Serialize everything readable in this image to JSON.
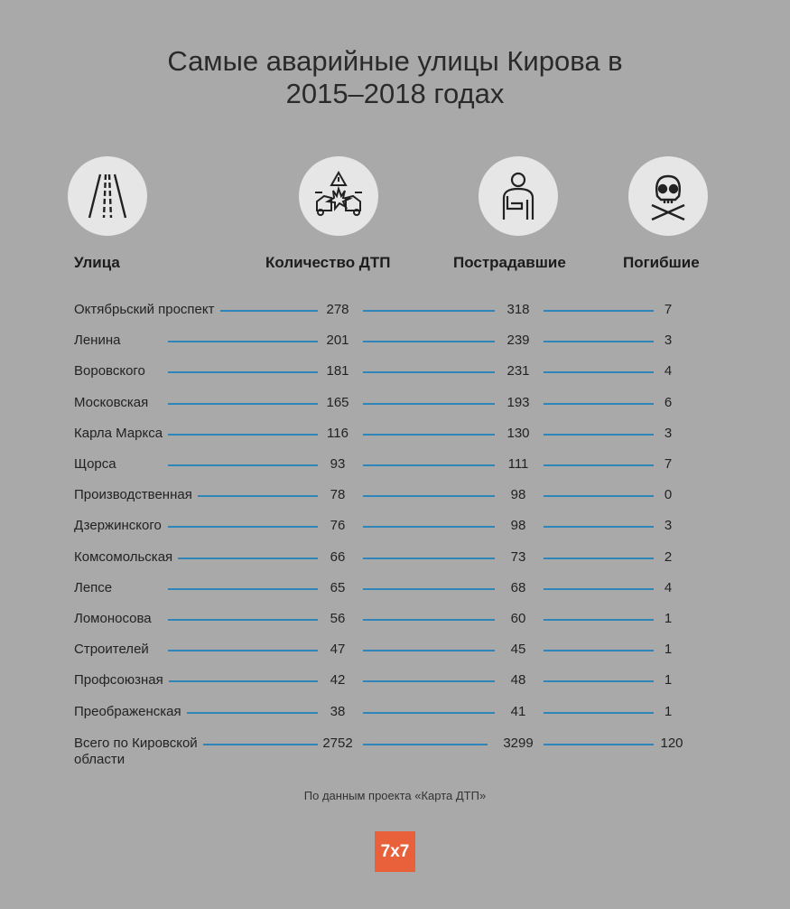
{
  "title": {
    "line1": "Самые аварийные улицы Кирова в",
    "line2": "2015–2018 годах"
  },
  "icons": [
    "road-icon",
    "car-crash-icon",
    "injured-person-icon",
    "skull-icon"
  ],
  "headers": {
    "street": "Улица",
    "accidents": "Количество ДТП",
    "injured": "Пострадавшие",
    "killed": "Погибшие"
  },
  "colors": {
    "background": "#a9a9a9",
    "line": "#2e86b8",
    "logo": "#e8613a"
  },
  "chart_data": {
    "type": "table",
    "columns": [
      "Улица",
      "Количество ДТП",
      "Пострадавшие",
      "Погибшие"
    ],
    "rows": [
      {
        "street": "Октябрьский проспект",
        "accidents": "278",
        "injured": "318",
        "killed": "7"
      },
      {
        "street": "Ленина",
        "accidents": "201",
        "injured": "239",
        "killed": "3"
      },
      {
        "street": "Воровского",
        "accidents": "181",
        "injured": "231",
        "killed": "4"
      },
      {
        "street": "Московская",
        "accidents": "165",
        "injured": "193",
        "killed": "6"
      },
      {
        "street": "Карла Маркса",
        "accidents": "116",
        "injured": "130",
        "killed": "3"
      },
      {
        "street": "Щорса",
        "accidents": "93",
        "injured": "111",
        "killed": "7"
      },
      {
        "street": "Производственная",
        "accidents": "78",
        "injured": "98",
        "killed": "0"
      },
      {
        "street": "Дзержинского",
        "accidents": "76",
        "injured": "98",
        "killed": "3"
      },
      {
        "street": "Комсомольская",
        "accidents": "66",
        "injured": "73",
        "killed": "2"
      },
      {
        "street": "Лепсе",
        "accidents": "65",
        "injured": "68",
        "killed": "4"
      },
      {
        "street": "Ломоносова",
        "accidents": "56",
        "injured": "60",
        "killed": "1"
      },
      {
        "street": "Строителей",
        "accidents": "47",
        "injured": "45",
        "killed": "1"
      },
      {
        "street": "Профсоюзная",
        "accidents": "42",
        "injured": "48",
        "killed": "1"
      },
      {
        "street": "Преображенская",
        "accidents": "38",
        "injured": "41",
        "killed": "1"
      }
    ],
    "total": {
      "street_line1": "Всего по Кировской",
      "street_line2": "области",
      "accidents": "2752",
      "injured": "3299",
      "killed": "120"
    }
  },
  "source": "По данным проекта «Карта ДТП»",
  "logo": "7x7"
}
